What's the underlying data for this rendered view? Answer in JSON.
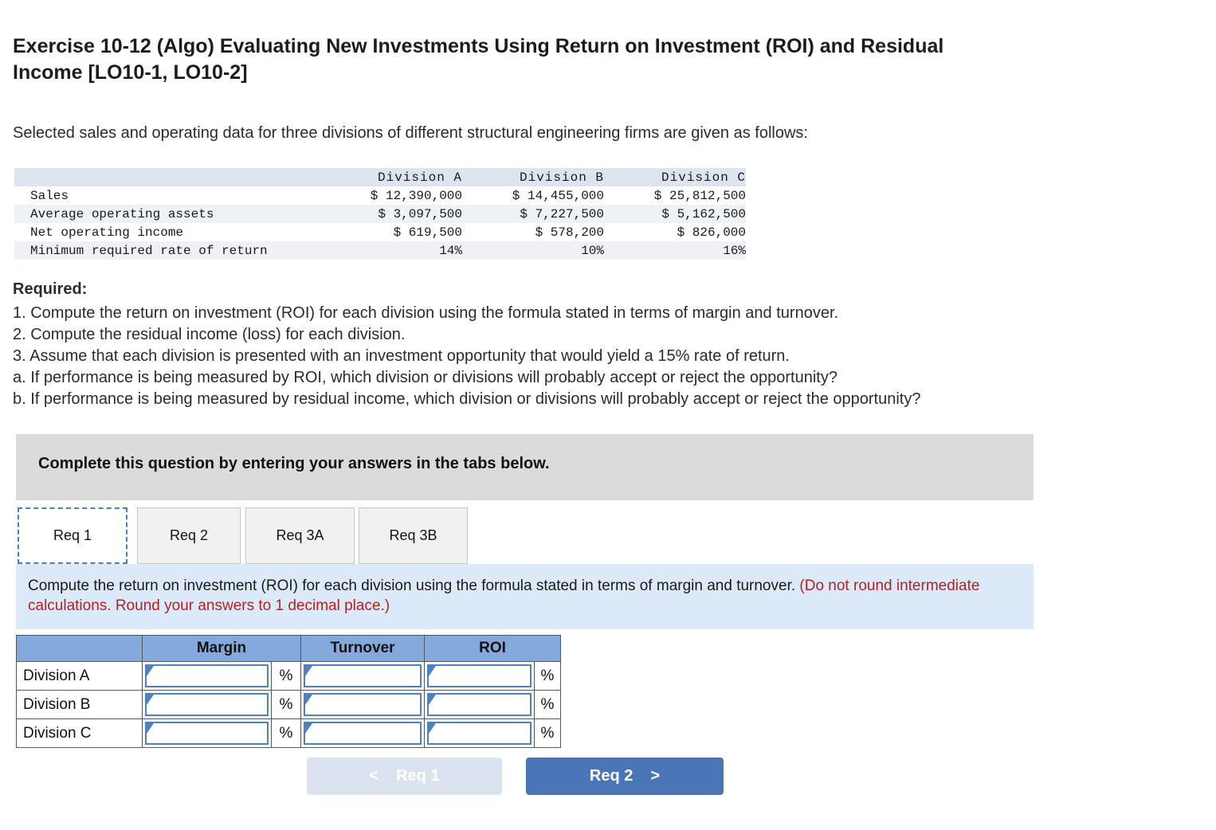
{
  "header": {
    "title_line1": "Exercise 10-12 (Algo) Evaluating New Investments Using Return on Investment (ROI) and Residual",
    "title_line2": "Income [LO10-1, LO10-2]",
    "intro": "Selected sales and operating data for three divisions of different structural engineering firms are given as follows:"
  },
  "data_table": {
    "columns": [
      "Division A",
      "Division B",
      "Division C"
    ],
    "rows": [
      {
        "label": "Sales",
        "values": [
          "$ 12,390,000",
          "$ 14,455,000",
          "$ 25,812,500"
        ]
      },
      {
        "label": "Average operating assets",
        "values": [
          "$ 3,097,500",
          "$ 7,227,500",
          "$ 5,162,500"
        ]
      },
      {
        "label": "Net operating income",
        "values": [
          "$ 619,500",
          "$ 578,200",
          "$ 826,000"
        ]
      },
      {
        "label": "Minimum required rate of return",
        "values": [
          "14%",
          "10%",
          "16%"
        ]
      }
    ]
  },
  "required": {
    "heading": "Required:",
    "items": [
      "1. Compute the return on investment (ROI) for each division using the formula stated in terms of margin and turnover.",
      "2. Compute the residual income (loss) for each division.",
      "3. Assume that each division is presented with an investment opportunity that would yield a 15% rate of return.",
      "a. If performance is being measured by ROI, which division or divisions will probably accept or reject the opportunity?",
      "b. If performance is being measured by residual income, which division or divisions will probably accept or reject the opportunity?"
    ]
  },
  "banner": {
    "text": "Complete this question by entering your answers in the tabs below."
  },
  "tabs": {
    "items": [
      {
        "label": "Req 1",
        "active": true
      },
      {
        "label": "Req 2",
        "active": false
      },
      {
        "label": "Req 3A",
        "active": false
      },
      {
        "label": "Req 3B",
        "active": false
      }
    ]
  },
  "instruction": {
    "normal": "Compute the return on investment (ROI) for each division using the formula stated in terms of margin and turnover. ",
    "note": "(Do not round intermediate calculations. Round your answers to 1 decimal place.)"
  },
  "answer_table": {
    "columns": [
      "Margin",
      "Turnover",
      "ROI"
    ],
    "percent": "%",
    "rows": [
      {
        "label": "Division A",
        "margin": "",
        "turnover": "",
        "roi": ""
      },
      {
        "label": "Division B",
        "margin": "",
        "turnover": "",
        "roi": ""
      },
      {
        "label": "Division C",
        "margin": "",
        "turnover": "",
        "roi": ""
      }
    ]
  },
  "footer": {
    "prev_icon": "<",
    "prev_label": "Req 1",
    "next_label": "Req 2",
    "next_icon": ">"
  },
  "colors": {
    "answer_header_blue": "#84aadd",
    "input_border_blue": "#4f81bd",
    "primary_button_blue": "#4a76b8",
    "disabled_button_blue": "#dbe3f1",
    "note_red": "#b22222",
    "panel_blue": "#dbe9f8",
    "data_header_blue_gray": "#dde4ef",
    "data_row_shade": "#eef1f6",
    "banner_gray": "#dbdbdb",
    "active_tab_border": "#4c7cbf"
  }
}
